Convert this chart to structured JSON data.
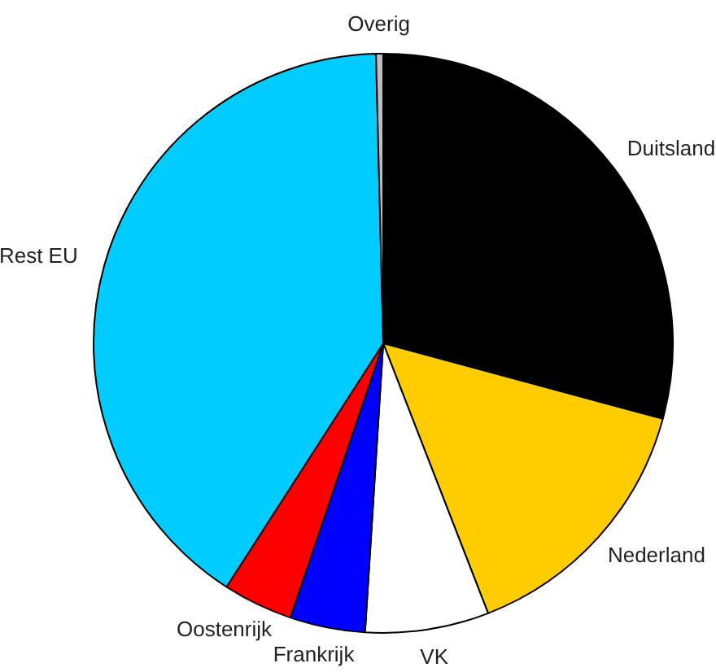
{
  "chart_data": {
    "type": "pie",
    "categories": [
      "Duitsland",
      "Nederland",
      "VK",
      "Frankrijk",
      "Oostenrijk",
      "Rest EU",
      "Overig"
    ],
    "values": [
      29.2,
      14.9,
      6.9,
      4.2,
      3.9,
      40.5,
      0.4
    ],
    "colors": [
      "#000000",
      "#ffcc00",
      "#ffffff",
      "#0000ff",
      "#ff0000",
      "#00ccff",
      "#bebebe"
    ]
  }
}
